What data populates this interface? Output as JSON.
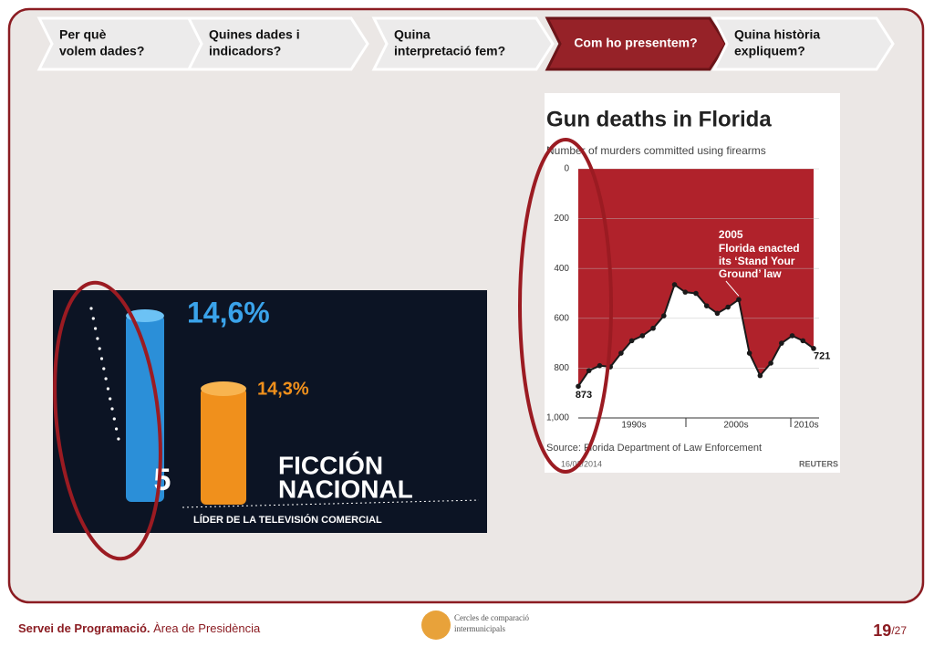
{
  "steps": [
    {
      "label": [
        "Per què",
        "volem dades?"
      ]
    },
    {
      "label": [
        "Quines dades i",
        "indicadors?"
      ]
    },
    {
      "label": [
        "Quina",
        "interpretació fem?"
      ]
    },
    {
      "label": [
        "Com ho presentem?"
      ]
    },
    {
      "label": [
        "Quina història",
        "expliquem?"
      ]
    }
  ],
  "active_step": 3,
  "tv_image": {
    "blue_label": "14,6%",
    "orange_label": "14,3%",
    "title": [
      "FICCIÓN",
      "NACIONAL"
    ],
    "subtitle": "LÍDER DE LA TELEVISIÓN COMERCIAL",
    "channel": "5"
  },
  "chart_data": {
    "type": "line",
    "title": "Gun deaths in Florida",
    "subtitle": "Number of murders committed using firearms",
    "x_labels": [
      "1990s",
      "2000s",
      "2010s"
    ],
    "values": [
      873,
      810,
      790,
      795,
      740,
      690,
      670,
      640,
      590,
      465,
      495,
      500,
      550,
      580,
      555,
      525,
      740,
      830,
      780,
      700,
      670,
      690,
      721
    ],
    "color": "#1a1a1a",
    "area_color": "#b0222b",
    "y_inverted": true,
    "ylim": [
      0,
      1000
    ],
    "yticks": [
      0,
      200,
      400,
      600,
      800,
      {
        "value": 1000,
        "label": "1,000"
      }
    ],
    "grid": true,
    "annotations": [
      {
        "index": 0,
        "text": "873"
      },
      {
        "index": 22,
        "text": "721"
      }
    ],
    "event": {
      "index": 15,
      "year": "2005",
      "text": [
        "Florida enacted",
        "its ‘Stand Your",
        "Ground’ law"
      ]
    },
    "source": "Source: Florida Department of Law Enforcement",
    "date": "16/02/2014",
    "credit": "REUTERS"
  },
  "footer": {
    "org_bold": "Servei de Programació.",
    "org": " Àrea de Presidència",
    "logo_text": [
      "Cercles de comparació",
      "intermunicipals"
    ],
    "page": "19",
    "total": "/27"
  }
}
